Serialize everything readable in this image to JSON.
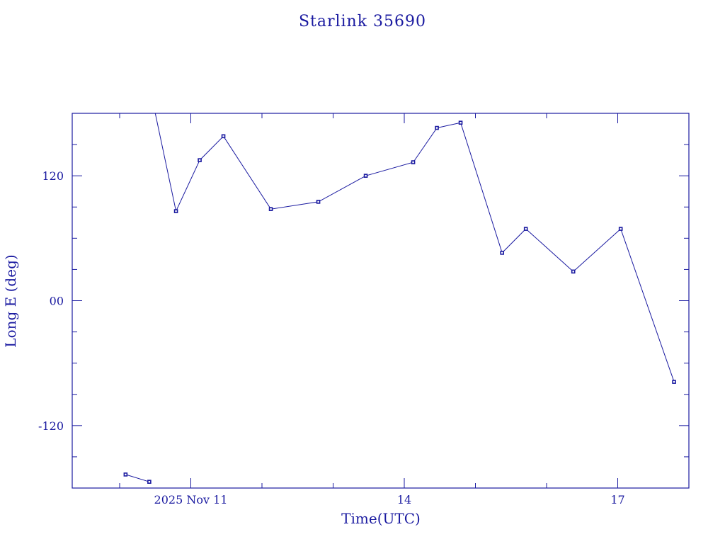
{
  "chart_data": {
    "type": "line",
    "title": "Starlink 35690",
    "xlabel": "Time(UTC)",
    "ylabel": "Long E (deg)",
    "x_unit": "days (UTC)",
    "x_tick_labels": [
      {
        "x": "2025-11-11",
        "label": "2025 Nov 11"
      },
      {
        "x": "2025-11-14",
        "label": "14"
      },
      {
        "x": "2025-11-17",
        "label": "17"
      }
    ],
    "y_tick_labels": [
      {
        "y": 120,
        "label": "120"
      },
      {
        "y": 0,
        "label": "00"
      },
      {
        "y": -120,
        "label": "-120"
      }
    ],
    "xlim": [
      "2025-11-09 08:00",
      "2025-11-18 00:00"
    ],
    "ylim": [
      -180,
      180
    ],
    "grid": false,
    "series": [
      {
        "points": [
          {
            "x": "2025-11-10 02:00",
            "y": -167
          },
          {
            "x": "2025-11-10 10:00",
            "y": -174
          },
          {
            "x": "2025-11-10 12:00",
            "y": 180,
            "break_before": true
          },
          {
            "x": "2025-11-10 19:00",
            "y": 86
          },
          {
            "x": "2025-11-11 03:00",
            "y": 135
          },
          {
            "x": "2025-11-11 11:00",
            "y": 158
          },
          {
            "x": "2025-11-12 03:00",
            "y": 88
          },
          {
            "x": "2025-11-12 19:00",
            "y": 95
          },
          {
            "x": "2025-11-13 11:00",
            "y": 120
          },
          {
            "x": "2025-11-14 03:00",
            "y": 133
          },
          {
            "x": "2025-11-14 11:00",
            "y": 166
          },
          {
            "x": "2025-11-14 19:00",
            "y": 171
          },
          {
            "x": "2025-11-15 09:00",
            "y": 46
          },
          {
            "x": "2025-11-15 17:00",
            "y": 69
          },
          {
            "x": "2025-11-16 09:00",
            "y": 28
          },
          {
            "x": "2025-11-17 01:00",
            "y": 69
          },
          {
            "x": "2025-11-17 19:00",
            "y": -78
          }
        ]
      }
    ]
  }
}
